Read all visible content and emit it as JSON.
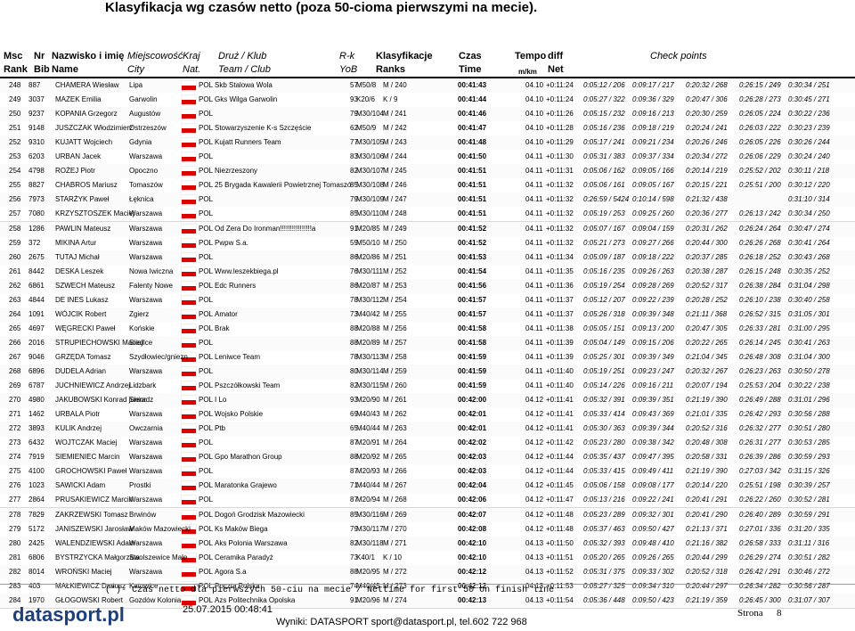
{
  "header": {
    "title": "Klasyfikacja wg czasów netto (poza 50-cioma pierwszymi na mecie).",
    "columns": [
      {
        "line1": "Msc",
        "line2": "Rank"
      },
      {
        "line1": "Nr",
        "line2": "Bib"
      },
      {
        "line1": "Nazwisko i imię",
        "line2": "Name"
      },
      {
        "line1": "Miejscowość",
        "line2": "City"
      },
      {
        "line1": "Kraj",
        "line2": "Nat."
      },
      {
        "line1": "Druż / Klub",
        "line2": "Team / Club"
      },
      {
        "line1": "R-k",
        "line2": "YoB"
      },
      {
        "line1": "Klasyfikacje",
        "line2": "Ranks"
      },
      {
        "line1": "Czas",
        "line2": "Time"
      },
      {
        "line1": "Tempo",
        "line2": "m/km"
      },
      {
        "line1": "diff",
        "line2": "Net"
      },
      {
        "line1": "Check points"
      }
    ]
  },
  "rows": [
    {
      "rank": 248,
      "bib": 887,
      "name": "CHAMERA Wiesław",
      "city": "Lipa",
      "nat": "POL",
      "team": "Skb Stalowa Wola",
      "yob": 57,
      "cat": "M50/8",
      "ranks": "M / 240",
      "time": "00:41:43",
      "tempo": "04.10",
      "diff": "+0:11:24",
      "cp1": "0:05:12 / 206",
      "cp2": "0:09:17 / 217",
      "cp3": "0:20:32 / 268",
      "cp4": "0:26:15 / 249",
      "cp5": "0:30:34 / 251"
    },
    {
      "rank": 249,
      "bib": 3037,
      "name": "MAZEK Emilia",
      "city": "Garwolin",
      "nat": "POL",
      "team": "Gks Wilga Garwolin",
      "yob": 93,
      "cat": "K20/6",
      "ranks": "K / 9",
      "time": "00:41:44",
      "tempo": "04.10",
      "diff": "+0:11:24",
      "cp1": "0:05:27 / 322",
      "cp2": "0:09:36 / 329",
      "cp3": "0:20:47 / 306",
      "cp4": "0:26:28 / 273",
      "cp5": "0:30:45 / 271"
    },
    {
      "rank": 250,
      "bib": 9237,
      "name": "KOPANIA Grzegorz",
      "city": "Augustów",
      "nat": "POL",
      "yob": 79,
      "cat": "M30/104",
      "ranks": "M / 241",
      "time": "00:41:46",
      "tempo": "04.10",
      "diff": "+0:11:26",
      "cp1": "0:05:15 / 232",
      "cp2": "0:09:16 / 213",
      "cp3": "0:20:30 / 259",
      "cp4": "0:26:05 / 224",
      "cp5": "0:30:22 / 236"
    },
    {
      "rank": 251,
      "bib": 9148,
      "name": "JUSZCZAK Włodzimierz",
      "city": "Ostrzeszów",
      "nat": "POL",
      "team": "Stowarzyszenie K-s Szczęście",
      "yob": 62,
      "cat": "M50/9",
      "ranks": "M / 242",
      "time": "00:41:47",
      "tempo": "04.10",
      "diff": "+0:11:28",
      "cp1": "0:05:16 / 236",
      "cp2": "0:09:18 / 219",
      "cp3": "0:20:24 / 241",
      "cp4": "0:26:03 / 222",
      "cp5": "0:30:23 / 239"
    },
    {
      "rank": 252,
      "bib": 9310,
      "name": "KUJATT Wojciech",
      "city": "Gdynia",
      "nat": "POL",
      "team": "Kujatt Runners Team",
      "yob": 77,
      "cat": "M30/105",
      "ranks": "M / 243",
      "time": "00:41:48",
      "tempo": "04.10",
      "diff": "+0:11:29",
      "cp1": "0:05:17 / 241",
      "cp2": "0:09:21 / 234",
      "cp3": "0:20:26 / 246",
      "cp4": "0:26:05 / 226",
      "cp5": "0:30:26 / 244"
    },
    {
      "rank": 253,
      "bib": 6203,
      "name": "URBAN Jacek",
      "city": "Warszawa",
      "nat": "POL",
      "yob": 83,
      "cat": "M30/106",
      "ranks": "M / 244",
      "time": "00:41:50",
      "tempo": "04.11",
      "diff": "+0:11:30",
      "cp1": "0:05:31 / 383",
      "cp2": "0:09:37 / 334",
      "cp3": "0:20:34 / 272",
      "cp4": "0:26:06 / 229",
      "cp5": "0:30:24 / 240"
    },
    {
      "rank": 254,
      "bib": 4798,
      "name": "ROŻEJ Piotr",
      "city": "Opoczno",
      "nat": "POL",
      "team": "Niezrzeszony",
      "yob": 82,
      "cat": "M30/107",
      "ranks": "M / 245",
      "time": "00:41:51",
      "tempo": "04.11",
      "diff": "+0:11:31",
      "cp1": "0:05:06 / 162",
      "cp2": "0:09:05 / 166",
      "cp3": "0:20:14 / 219",
      "cp4": "0:25:52 / 202",
      "cp5": "0:30:11 / 218"
    },
    {
      "rank": 255,
      "bib": 8827,
      "name": "CHABROS Mariusz",
      "city": "Tomaszów",
      "nat": "POL",
      "team": "25 Brygada Kawalerii Powietrznej Tomaszó",
      "yob": 85,
      "cat": "M30/108",
      "ranks": "M / 246",
      "time": "00:41:51",
      "tempo": "04.11",
      "diff": "+0:11:32",
      "cp1": "0:05:06 / 161",
      "cp2": "0:09:05 / 167",
      "cp3": "0:20:15 / 221",
      "cp4": "0:25:51 / 200",
      "cp5": "0:30:12 / 220"
    },
    {
      "rank": 256,
      "bib": 7973,
      "name": "STARŻYK Paweł",
      "city": "Łęknica",
      "nat": "POL",
      "yob": 79,
      "cat": "M30/109",
      "ranks": "M / 247",
      "time": "00:41:51",
      "tempo": "04.11",
      "diff": "+0:11:32",
      "cp1": "0:26:59 / 5424",
      "cp2": "0:10:14 / 598",
      "cp3": "0:21:32 / 438",
      "cp5": "0:31:10 / 314"
    },
    {
      "rank": 257,
      "bib": 7080,
      "name": "KRZYSZTOSZEK Maciej",
      "city": "Warszawa",
      "nat": "POL",
      "yob": 85,
      "cat": "M30/110",
      "ranks": "M / 248",
      "time": "00:41:51",
      "tempo": "04.11",
      "diff": "+0:11:32",
      "cp1": "0:05:19 / 253",
      "cp2": "0:09:25 / 260",
      "cp3": "0:20:36 / 277",
      "cp4": "0:26:13 / 242",
      "cp5": "0:30:34 / 250"
    },
    {
      "rank": 258,
      "bib": 1286,
      "name": "PAWLIN Mateusz",
      "city": "Warszawa",
      "nat": "POL",
      "team": "Od Zera Do Ironman!!!!!!!!!!!!!!!!a",
      "yob": 91,
      "cat": "M20/85",
      "ranks": "M / 249",
      "time": "00:41:52",
      "tempo": "04.11",
      "diff": "+0:11:32",
      "cp1": "0:05:07 / 167",
      "cp2": "0:09:04 / 159",
      "cp3": "0:20:31 / 262",
      "cp4": "0:26:24 / 264",
      "cp5": "0:30:47 / 274"
    },
    {
      "rank": 259,
      "bib": 372,
      "name": "MIKINA Artur",
      "city": "Warszawa",
      "nat": "POL",
      "team": "Pwpw S.a.",
      "yob": 59,
      "cat": "M50/10",
      "ranks": "M / 250",
      "time": "00:41:52",
      "tempo": "04.11",
      "diff": "+0:11:32",
      "cp1": "0:05:21 / 273",
      "cp2": "0:09:27 / 266",
      "cp3": "0:20:44 / 300",
      "cp4": "0:26:26 / 268",
      "cp5": "0:30:41 / 264"
    },
    {
      "rank": 260,
      "bib": 2675,
      "name": "TUTAJ Michał",
      "city": "Warszawa",
      "nat": "POL",
      "yob": 86,
      "cat": "M20/86",
      "ranks": "M / 251",
      "time": "00:41:53",
      "tempo": "04.11",
      "diff": "+0:11:34",
      "cp1": "0:05:09 / 187",
      "cp2": "0:09:18 / 222",
      "cp3": "0:20:37 / 285",
      "cp4": "0:26:18 / 252",
      "cp5": "0:30:43 / 268"
    },
    {
      "rank": 261,
      "bib": 8442,
      "name": "DESKA Leszek",
      "city": "Nowa Iwiczna",
      "nat": "POL",
      "team": "Www.leszekbiega.pl",
      "yob": 76,
      "cat": "M30/111",
      "ranks": "M / 252",
      "time": "00:41:54",
      "tempo": "04.11",
      "diff": "+0:11:35",
      "cp1": "0:05:16 / 235",
      "cp2": "0:09:26 / 263",
      "cp3": "0:20:38 / 287",
      "cp4": "0:26:15 / 248",
      "cp5": "0:30:35 / 252"
    },
    {
      "rank": 262,
      "bib": 6861,
      "name": "SZWECH Mateusz",
      "city": "Falenty Nowe",
      "nat": "POL",
      "team": "Edc Runners",
      "yob": 86,
      "cat": "M20/87",
      "ranks": "M / 253",
      "time": "00:41:56",
      "tempo": "04.11",
      "diff": "+0:11:36",
      "cp1": "0:05:19 / 254",
      "cp2": "0:09:28 / 269",
      "cp3": "0:20:52 / 317",
      "cp4": "0:26:38 / 284",
      "cp5": "0:31:04 / 298"
    },
    {
      "rank": 263,
      "bib": 4844,
      "name": "DE INES Lukasz",
      "city": "Warszawa",
      "nat": "POL",
      "yob": 78,
      "cat": "M30/112",
      "ranks": "M / 254",
      "time": "00:41:57",
      "tempo": "04.11",
      "diff": "+0:11:37",
      "cp1": "0:05:12 / 207",
      "cp2": "0:09:22 / 239",
      "cp3": "0:20:28 / 252",
      "cp4": "0:26:10 / 238",
      "cp5": "0:30:40 / 258"
    },
    {
      "rank": 264,
      "bib": 1091,
      "name": "WÓJCIK Robert",
      "city": "Zgierz",
      "nat": "POL",
      "team": "Amator",
      "yob": 73,
      "cat": "M40/42",
      "ranks": "M / 255",
      "time": "00:41:57",
      "tempo": "04.11",
      "diff": "+0:11:37",
      "cp1": "0:05:26 / 318",
      "cp2": "0:09:39 / 348",
      "cp3": "0:21:11 / 368",
      "cp4": "0:26:52 / 315",
      "cp5": "0:31:05 / 301"
    },
    {
      "rank": 265,
      "bib": 4697,
      "name": "WĘGRECKI Paweł",
      "city": "Końskie",
      "nat": "POL",
      "team": "Brak",
      "yob": 88,
      "cat": "M20/88",
      "ranks": "M / 256",
      "time": "00:41:58",
      "tempo": "04.11",
      "diff": "+0:11:38",
      "cp1": "0:05:05 / 151",
      "cp2": "0:09:13 / 200",
      "cp3": "0:20:47 / 305",
      "cp4": "0:26:33 / 281",
      "cp5": "0:31:00 / 295"
    },
    {
      "rank": 266,
      "bib": 2016,
      "name": "STRUPIECHOWSKI Maciej",
      "city": "Siedlce",
      "nat": "POL",
      "yob": 88,
      "cat": "M20/89",
      "ranks": "M / 257",
      "time": "00:41:58",
      "tempo": "04.11",
      "diff": "+0:11:39",
      "cp1": "0:05:04 / 149",
      "cp2": "0:09:15 / 206",
      "cp3": "0:20:22 / 265",
      "cp4": "0:26:14 / 245",
      "cp5": "0:30:41 / 263"
    },
    {
      "rank": 267,
      "bib": 9046,
      "name": "GRZĘDA Tomasz",
      "city": "Szydłowiec/gniezn",
      "nat": "POL",
      "team": "Leniwce Team",
      "yob": 78,
      "cat": "M30/113",
      "ranks": "M / 258",
      "time": "00:41:59",
      "tempo": "04.11",
      "diff": "+0:11:39",
      "cp1": "0:05:25 / 301",
      "cp2": "0:09:39 / 349",
      "cp3": "0:21:04 / 345",
      "cp4": "0:26:48 / 308",
      "cp5": "0:31:04 / 300"
    },
    {
      "rank": 268,
      "bib": 6896,
      "name": "DUDELA Adrian",
      "city": "Warszawa",
      "nat": "POL",
      "yob": 80,
      "cat": "M30/114",
      "ranks": "M / 259",
      "time": "00:41:59",
      "tempo": "04.11",
      "diff": "+0:11:40",
      "cp1": "0:05:19 / 251",
      "cp2": "0:09:23 / 247",
      "cp3": "0:20:32 / 267",
      "cp4": "0:26:23 / 263",
      "cp5": "0:30:50 / 278"
    },
    {
      "rank": 269,
      "bib": 6787,
      "name": "JUCHNIEWICZ Andrzej",
      "city": "Lidzbark",
      "nat": "POL",
      "team": "Pszczółkowski Team",
      "yob": 82,
      "cat": "M30/115",
      "ranks": "M / 260",
      "time": "00:41:59",
      "tempo": "04.11",
      "diff": "+0:11:40",
      "cp1": "0:05:14 / 226",
      "cp2": "0:09:16 / 211",
      "cp3": "0:20:07 / 194",
      "cp4": "0:25:53 / 204",
      "cp5": "0:30:22 / 238"
    },
    {
      "rank": 270,
      "bib": 4980,
      "name": "JAKUBOWSKI Konrad junior",
      "city": "Sieradz",
      "nat": "POL",
      "team": "I Lo",
      "yob": 93,
      "cat": "M20/90",
      "ranks": "M / 261",
      "time": "00:42:00",
      "tempo": "04.12",
      "diff": "+0:11:41",
      "cp1": "0:05:32 / 391",
      "cp2": "0:09:39 / 351",
      "cp3": "0:21:19 / 390",
      "cp4": "0:26:49 / 288",
      "cp5": "0:31:01 / 296"
    },
    {
      "rank": 271,
      "bib": 1462,
      "name": "URBALA Piotr",
      "city": "Warszawa",
      "nat": "POL",
      "team": "Wojsko Polskie",
      "yob": 69,
      "cat": "M40/43",
      "ranks": "M / 262",
      "time": "00:42:01",
      "tempo": "04.12",
      "diff": "+0:11:41",
      "cp1": "0:05:33 / 414",
      "cp2": "0:09:43 / 369",
      "cp3": "0:21:01 / 335",
      "cp4": "0:26:42 / 293",
      "cp5": "0:30:56 / 288"
    },
    {
      "rank": 272,
      "bib": 3893,
      "name": "KULIK Andrzej",
      "city": "Owczarnia",
      "nat": "POL",
      "team": "Ptb",
      "yob": 65,
      "cat": "M40/44",
      "ranks": "M / 263",
      "time": "00:42:01",
      "tempo": "04.12",
      "diff": "+0:11:41",
      "cp1": "0:05:30 / 363",
      "cp2": "0:09:39 / 344",
      "cp3": "0:20:52 / 316",
      "cp4": "0:26:32 / 277",
      "cp5": "0:30:51 / 280"
    },
    {
      "rank": 273,
      "bib": 6432,
      "name": "WOJTCZAK Maciej",
      "city": "Warszawa",
      "nat": "POL",
      "yob": 87,
      "cat": "M20/91",
      "ranks": "M / 264",
      "time": "00:42:02",
      "tempo": "04.12",
      "diff": "+0:11:42",
      "cp1": "0:05:23 / 280",
      "cp2": "0:09:38 / 342",
      "cp3": "0:20:48 / 308",
      "cp4": "0:26:31 / 277",
      "cp5": "0:30:53 / 285"
    },
    {
      "rank": 274,
      "bib": 7919,
      "name": "SIEMIENIEC Marcin",
      "city": "Warszawa",
      "nat": "POL",
      "team": "Gpo Marathon Group",
      "yob": 88,
      "cat": "M20/92",
      "ranks": "M / 265",
      "time": "00:42:03",
      "tempo": "04.12",
      "diff": "+0:11:44",
      "cp1": "0:05:35 / 437",
      "cp2": "0:09:47 / 395",
      "cp3": "0:20:58 / 331",
      "cp4": "0:26:39 / 286",
      "cp5": "0:30:59 / 293"
    },
    {
      "rank": 275,
      "bib": 4100,
      "name": "GROCHOWSKI Paweł",
      "city": "Warszawa",
      "nat": "POL",
      "yob": 87,
      "cat": "M20/93",
      "ranks": "M / 266",
      "time": "00:42:03",
      "tempo": "04.12",
      "diff": "+0:11:44",
      "cp1": "0:05:33 / 415",
      "cp2": "0:09:49 / 411",
      "cp3": "0:21:19 / 390",
      "cp4": "0:27:03 / 342",
      "cp5": "0:31:15 / 326"
    },
    {
      "rank": 276,
      "bib": 1023,
      "name": "SAWICKI Adam",
      "city": "Prostki",
      "nat": "POL",
      "team": "Maratonka Grajewo",
      "yob": 71,
      "cat": "M40/44",
      "ranks": "M / 267",
      "time": "00:42:04",
      "tempo": "04.12",
      "diff": "+0:11:45",
      "cp1": "0:05:06 / 158",
      "cp2": "0:09:08 / 177",
      "cp3": "0:20:14 / 220",
      "cp4": "0:25:51 / 198",
      "cp5": "0:30:39 / 257"
    },
    {
      "rank": 277,
      "bib": 2864,
      "name": "PRUSAKIEWICZ Marcin",
      "city": "Warszawa",
      "nat": "POL",
      "yob": 87,
      "cat": "M20/94",
      "ranks": "M / 268",
      "time": "00:42:06",
      "tempo": "04.12",
      "diff": "+0:11:47",
      "cp1": "0:05:13 / 216",
      "cp2": "0:09:22 / 241",
      "cp3": "0:20:41 / 291",
      "cp4": "0:26:22 / 260",
      "cp5": "0:30:52 / 281"
    },
    {
      "rank": 278,
      "bib": 7829,
      "name": "ZAKRZEWSKI Tomasz",
      "city": "Brwinów",
      "nat": "POL",
      "team": "Dogoń Grodzisk Mazowiecki",
      "yob": 85,
      "cat": "M30/116",
      "ranks": "M / 269",
      "time": "00:42:07",
      "tempo": "04.12",
      "diff": "+0:11:48",
      "cp1": "0:05:23 / 289",
      "cp2": "0:09:32 / 301",
      "cp3": "0:20:41 / 290",
      "cp4": "0:26:40 / 289",
      "cp5": "0:30:59 / 291"
    },
    {
      "rank": 279,
      "bib": 5172,
      "name": "JANISZEWSKI Jarosław",
      "city": "Maków Mazowiecki",
      "nat": "POL",
      "team": "Ks Maków Biega",
      "yob": 79,
      "cat": "M30/117",
      "ranks": "M / 270",
      "time": "00:42:08",
      "tempo": "04.12",
      "diff": "+0:11:48",
      "cp1": "0:05:37 / 463",
      "cp2": "0:09:50 / 427",
      "cp3": "0:21:13 / 371",
      "cp4": "0:27:01 / 336",
      "cp5": "0:31:20 / 335"
    },
    {
      "rank": 280,
      "bib": 2425,
      "name": "WALENDZIEWSKI Adam",
      "city": "Warszawa",
      "nat": "POL",
      "team": "Aks Polonia Warszawa",
      "yob": 82,
      "cat": "M30/118",
      "ranks": "M / 271",
      "time": "00:42:10",
      "tempo": "04.13",
      "diff": "+0:11:50",
      "cp1": "0:05:32 / 393",
      "cp2": "0:09:48 / 410",
      "cp3": "0:21:16 / 382",
      "cp4": "0:26:58 / 333",
      "cp5": "0:31:11 / 316"
    },
    {
      "rank": 281,
      "bib": 6806,
      "name": "BYSTRZYCKA Małgorzata",
      "city": "Swolszewice Małe",
      "nat": "POL",
      "team": "Ceramika Paradyż",
      "yob": 73,
      "cat": "K40/1",
      "ranks": "K / 10",
      "time": "00:42:10",
      "tempo": "04.13",
      "diff": "+0:11:51",
      "cp1": "0:05:20 / 265",
      "cp2": "0:09:26 / 265",
      "cp3": "0:20:44 / 299",
      "cp4": "0:26:29 / 274",
      "cp5": "0:30:51 / 282"
    },
    {
      "rank": 282,
      "bib": 8014,
      "name": "WROŃSKI Maciej",
      "city": "Warszawa",
      "nat": "POL",
      "team": "Agora S.a",
      "yob": 88,
      "cat": "M20/95",
      "ranks": "M / 272",
      "time": "00:42:12",
      "tempo": "04.13",
      "diff": "+0:11:52",
      "cp1": "0:05:31 / 375",
      "cp2": "0:09:33 / 302",
      "cp3": "0:20:52 / 318",
      "cp4": "0:26:42 / 291",
      "cp5": "0:30:46 / 272"
    },
    {
      "rank": 283,
      "bib": 403,
      "name": "MAŁKIEWICZ Dariusz",
      "city": "Katowice",
      "nat": "POL",
      "team": "Poczta Polska",
      "yob": 74,
      "cat": "M40/45",
      "ranks": "M / 273",
      "time": "00:42:12",
      "tempo": "04.13",
      "diff": "+0:11:53",
      "cp1": "0:05:27 / 325",
      "cp2": "0:09:34 / 310",
      "cp3": "0:20:44 / 297",
      "cp4": "0:26:34 / 282",
      "cp5": "0:30:56 / 287"
    },
    {
      "rank": 284,
      "bib": 1970,
      "name": "GŁOGOWSKI Robert",
      "city": "Gozdów Kolonia",
      "nat": "POL",
      "team": "Azs Politechnika Opolska",
      "yob": 91,
      "cat": "M20/96",
      "ranks": "M / 274",
      "time": "00:42:13",
      "tempo": "04.13",
      "diff": "+0:11:54",
      "cp1": "0:05:36 / 448",
      "cp2": "0:09:50 / 423",
      "cp3": "0:21:19 / 359",
      "cp4": "0:26:45 / 300",
      "cp5": "0:31:07 / 307"
    }
  ],
  "footer": {
    "note": "(*)- Czas netto dla pierwszych 50-ciu na mecie / Nettime for first 50 on finish line",
    "logo": "datasport.pl",
    "date": "25.07.2015 00:48:41",
    "contact": "Wyniki: DATASPORT sport@datasport.pl, tel.602 722 968",
    "page_label": "Strona",
    "page": 8
  }
}
